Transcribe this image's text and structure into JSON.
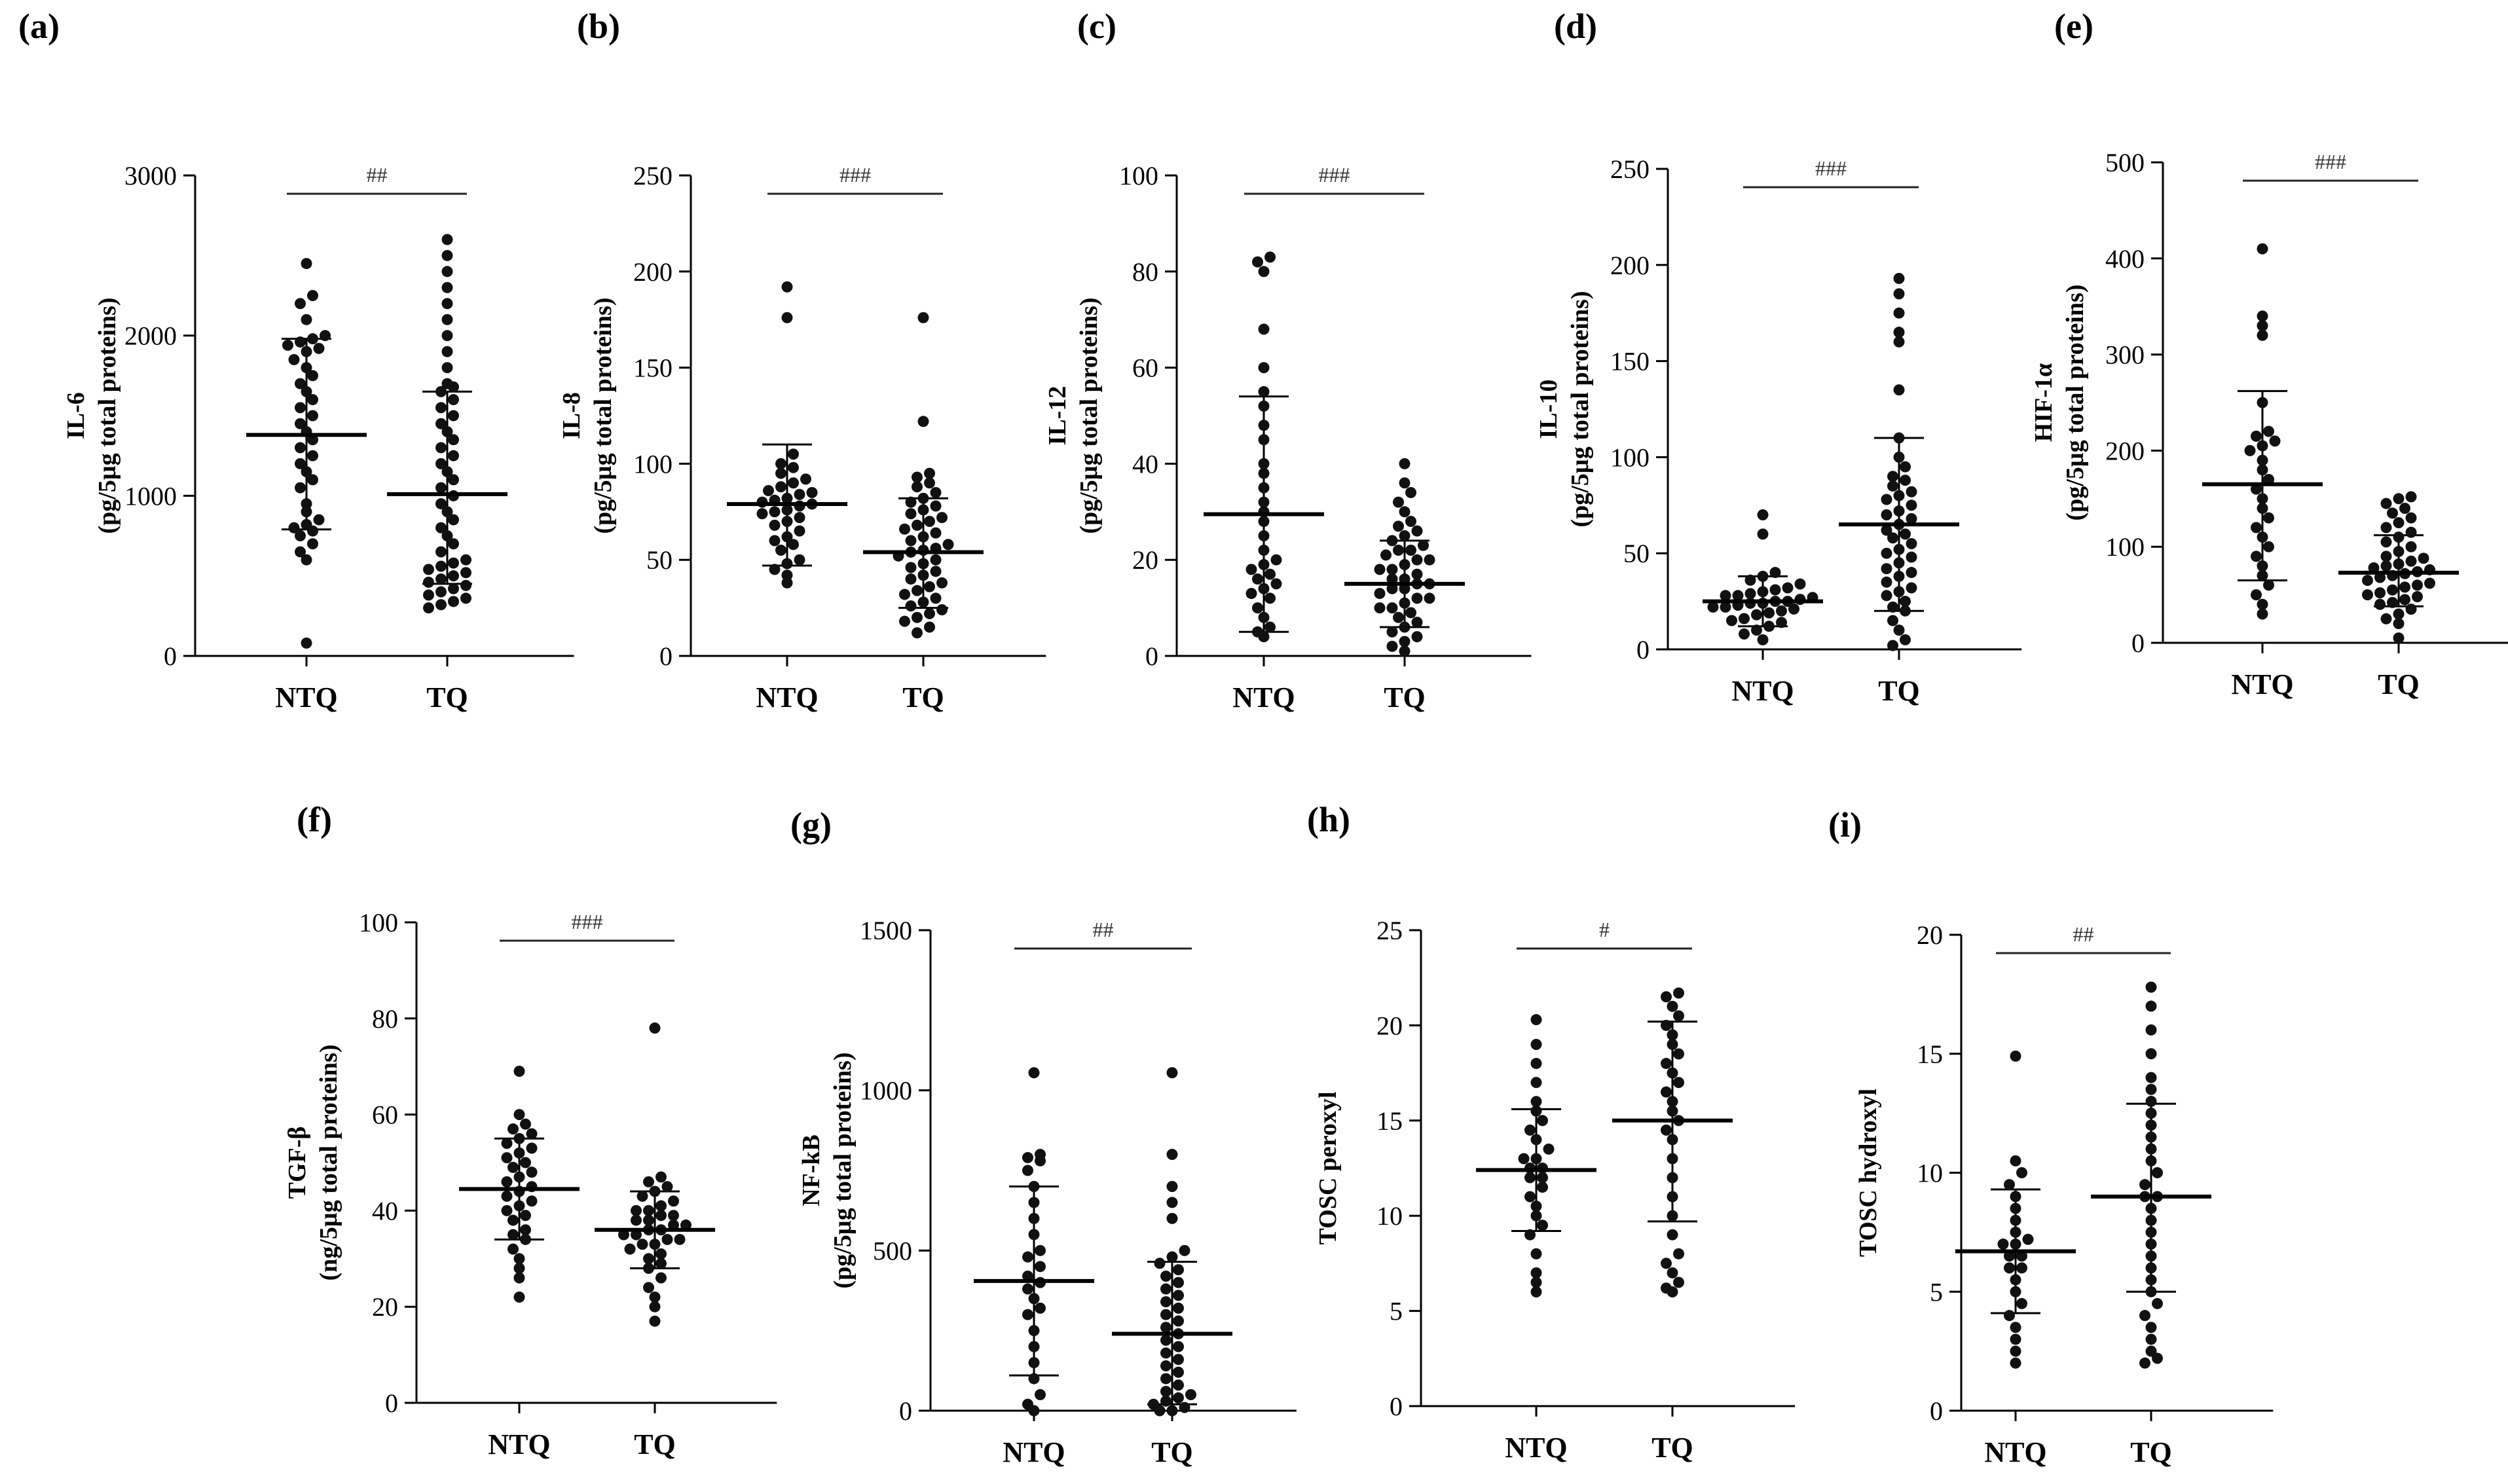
{
  "figure": {
    "categories": [
      "NTQ",
      "TQ"
    ],
    "colors": {
      "ink": "#000000",
      "dots": "#111111",
      "sig_line": "#222222"
    }
  },
  "chart_data": [
    {
      "label": "(a)",
      "type": "scatter",
      "title": "",
      "ylabel": [
        "IL-6",
        "(pg/5µg total proteins)"
      ],
      "ylim": [
        0,
        3000
      ],
      "yticks": [
        0,
        1000,
        2000,
        3000
      ],
      "categories": [
        "NTQ",
        "TQ"
      ],
      "significance": "##",
      "series": [
        {
          "name": "NTQ",
          "mean": 1380,
          "sd_low": 790,
          "sd_high": 1980,
          "values": [
            80,
            600,
            650,
            700,
            750,
            780,
            800,
            820,
            850,
            900,
            950,
            1050,
            1100,
            1150,
            1200,
            1250,
            1300,
            1350,
            1400,
            1450,
            1500,
            1550,
            1600,
            1650,
            1700,
            1750,
            1800,
            1850,
            1900,
            1920,
            1940,
            1960,
            1980,
            2000,
            2100,
            2200,
            2250,
            2450
          ]
        },
        {
          "name": "TQ",
          "mean": 1010,
          "sd_low": 450,
          "sd_high": 1650,
          "values": [
            300,
            320,
            340,
            360,
            380,
            400,
            420,
            440,
            460,
            480,
            500,
            520,
            540,
            560,
            580,
            600,
            650,
            700,
            750,
            800,
            850,
            900,
            950,
            1000,
            1050,
            1100,
            1150,
            1200,
            1250,
            1300,
            1350,
            1400,
            1450,
            1500,
            1550,
            1600,
            1650,
            1680,
            1700,
            1800,
            1900,
            2000,
            2100,
            2200,
            2300,
            2400,
            2500,
            2600
          ]
        }
      ]
    },
    {
      "label": "(b)",
      "type": "scatter",
      "title": "",
      "ylabel": [
        "IL-8",
        "(pg/5µg total proteins)"
      ],
      "ylim": [
        0,
        250
      ],
      "yticks": [
        0,
        50,
        100,
        150,
        200,
        250
      ],
      "categories": [
        "NTQ",
        "TQ"
      ],
      "significance": "###",
      "series": [
        {
          "name": "NTQ",
          "mean": 79,
          "sd_low": 47,
          "sd_high": 110,
          "values": [
            38,
            42,
            45,
            48,
            50,
            55,
            58,
            60,
            62,
            65,
            68,
            70,
            72,
            74,
            75,
            76,
            78,
            79,
            80,
            81,
            82,
            84,
            85,
            86,
            88,
            90,
            92,
            95,
            98,
            100,
            105,
            176,
            192
          ]
        },
        {
          "name": "TQ",
          "mean": 54,
          "sd_low": 25,
          "sd_high": 82,
          "values": [
            12,
            15,
            18,
            20,
            22,
            24,
            26,
            28,
            30,
            32,
            34,
            36,
            38,
            40,
            42,
            44,
            46,
            48,
            50,
            52,
            54,
            55,
            56,
            58,
            60,
            62,
            64,
            66,
            68,
            70,
            72,
            74,
            76,
            78,
            80,
            82,
            85,
            88,
            90,
            93,
            95,
            122,
            176
          ]
        }
      ]
    },
    {
      "label": "(c)",
      "type": "scatter",
      "title": "",
      "ylabel": [
        "IL-12",
        "(pg/5µg total proteins)"
      ],
      "ylim": [
        0,
        100
      ],
      "yticks": [
        0,
        20,
        40,
        60,
        80,
        100
      ],
      "categories": [
        "NTQ",
        "TQ"
      ],
      "significance": "###",
      "series": [
        {
          "name": "NTQ",
          "mean": 29.5,
          "sd_low": 5,
          "sd_high": 54,
          "values": [
            4,
            5,
            6,
            8,
            10,
            12,
            13,
            14,
            15,
            16,
            17,
            18,
            19,
            20,
            22,
            25,
            28,
            30,
            32,
            35,
            38,
            40,
            45,
            48,
            52,
            55,
            60,
            68,
            80,
            82,
            83
          ]
        },
        {
          "name": "TQ",
          "mean": 15,
          "sd_low": 6,
          "sd_high": 24,
          "values": [
            1,
            2,
            3,
            4,
            5,
            6,
            7,
            8,
            9,
            10,
            10,
            11,
            12,
            12,
            13,
            14,
            14,
            15,
            15,
            16,
            16,
            17,
            18,
            18,
            19,
            20,
            20,
            21,
            22,
            22,
            23,
            24,
            25,
            26,
            27,
            28,
            30,
            32,
            34,
            36,
            40
          ]
        }
      ]
    },
    {
      "label": "(d)",
      "type": "scatter",
      "title": "",
      "ylabel": [
        "IL-10",
        "(pg/5µg total proteins)"
      ],
      "ylim": [
        0,
        250
      ],
      "yticks": [
        0,
        50,
        100,
        150,
        200,
        250
      ],
      "categories": [
        "NTQ",
        "TQ"
      ],
      "significance": "###",
      "series": [
        {
          "name": "NTQ",
          "mean": 25,
          "sd_low": 12,
          "sd_high": 38,
          "values": [
            5,
            8,
            10,
            12,
            14,
            15,
            16,
            18,
            19,
            20,
            21,
            22,
            22,
            23,
            24,
            24,
            25,
            25,
            26,
            27,
            28,
            28,
            29,
            30,
            31,
            32,
            34,
            36,
            38,
            40,
            60,
            70
          ]
        },
        {
          "name": "TQ",
          "mean": 65,
          "sd_low": 20,
          "sd_high": 110,
          "values": [
            2,
            5,
            10,
            15,
            20,
            22,
            25,
            28,
            30,
            32,
            35,
            38,
            40,
            42,
            45,
            48,
            50,
            52,
            55,
            58,
            60,
            62,
            65,
            68,
            70,
            72,
            75,
            78,
            80,
            82,
            85,
            88,
            90,
            95,
            100,
            110,
            135,
            160,
            165,
            175,
            185,
            193
          ]
        }
      ]
    },
    {
      "label": "(e)",
      "type": "scatter",
      "title": "",
      "ylabel": [
        "HIF-1α",
        "(pg/5µg total proteins)"
      ],
      "ylim": [
        0,
        500
      ],
      "yticks": [
        0,
        100,
        200,
        300,
        400,
        500
      ],
      "categories": [
        "NTQ",
        "TQ"
      ],
      "significance": "###",
      "series": [
        {
          "name": "NTQ",
          "mean": 165,
          "sd_low": 65,
          "sd_high": 262,
          "values": [
            30,
            40,
            50,
            60,
            70,
            80,
            90,
            100,
            110,
            120,
            130,
            140,
            150,
            160,
            170,
            180,
            190,
            200,
            205,
            210,
            215,
            220,
            250,
            320,
            330,
            340,
            410
          ]
        },
        {
          "name": "TQ",
          "mean": 73,
          "sd_low": 38,
          "sd_high": 112,
          "values": [
            5,
            20,
            25,
            30,
            35,
            40,
            42,
            45,
            48,
            50,
            52,
            55,
            58,
            60,
            62,
            65,
            68,
            70,
            72,
            74,
            76,
            78,
            80,
            82,
            85,
            88,
            90,
            95,
            100,
            105,
            110,
            115,
            120,
            125,
            130,
            135,
            140,
            145,
            150,
            152
          ]
        }
      ]
    },
    {
      "label": "(f)",
      "type": "scatter",
      "title": "",
      "ylabel": [
        "TGF-β",
        "(ng/5µg total proteins)"
      ],
      "ylim": [
        0,
        100
      ],
      "yticks": [
        0,
        20,
        40,
        60,
        80,
        100
      ],
      "categories": [
        "NTQ",
        "TQ"
      ],
      "significance": "###",
      "series": [
        {
          "name": "NTQ",
          "mean": 44.5,
          "sd_low": 34,
          "sd_high": 55,
          "values": [
            22,
            26,
            28,
            30,
            32,
            34,
            35,
            36,
            38,
            39,
            40,
            41,
            42,
            43,
            44,
            45,
            46,
            47,
            48,
            49,
            50,
            51,
            52,
            53,
            54,
            55,
            56,
            57,
            58,
            60,
            69
          ]
        },
        {
          "name": "TQ",
          "mean": 36,
          "sd_low": 28,
          "sd_high": 44,
          "values": [
            17,
            20,
            22,
            24,
            26,
            28,
            29,
            30,
            31,
            32,
            33,
            33,
            34,
            34,
            35,
            35,
            36,
            36,
            37,
            37,
            38,
            38,
            39,
            39,
            40,
            40,
            41,
            42,
            43,
            44,
            45,
            46,
            47,
            78
          ]
        }
      ]
    },
    {
      "label": "(g)",
      "type": "scatter",
      "title": "",
      "ylabel": [
        "NF-kB",
        "(pg/5µg total proteins)"
      ],
      "ylim": [
        0,
        1500
      ],
      "yticks": [
        0,
        500,
        1000,
        1500
      ],
      "categories": [
        "NTQ",
        "TQ"
      ],
      "significance": "##",
      "series": [
        {
          "name": "NTQ",
          "mean": 405,
          "sd_low": 110,
          "sd_high": 700,
          "values": [
            0,
            20,
            50,
            100,
            150,
            200,
            250,
            300,
            320,
            350,
            380,
            400,
            420,
            450,
            480,
            500,
            550,
            600,
            650,
            700,
            750,
            780,
            790,
            800,
            1055
          ]
        },
        {
          "name": "TQ",
          "mean": 240,
          "sd_low": 20,
          "sd_high": 465,
          "values": [
            0,
            0,
            10,
            20,
            30,
            40,
            50,
            60,
            80,
            100,
            120,
            140,
            160,
            180,
            200,
            220,
            240,
            260,
            280,
            300,
            320,
            340,
            360,
            380,
            400,
            420,
            440,
            460,
            480,
            500,
            600,
            650,
            700,
            800,
            1055
          ]
        }
      ]
    },
    {
      "label": "(h)",
      "type": "scatter",
      "title": "",
      "ylabel": [
        "TOSC peroxyl"
      ],
      "ylim": [
        0,
        25
      ],
      "yticks": [
        0,
        5,
        10,
        15,
        20,
        25
      ],
      "categories": [
        "NTQ",
        "TQ"
      ],
      "significance": "#",
      "series": [
        {
          "name": "NTQ",
          "mean": 12.4,
          "sd_low": 9.2,
          "sd_high": 15.6,
          "values": [
            6,
            6.5,
            7,
            8,
            9,
            9.5,
            10,
            10.5,
            11,
            11.5,
            12,
            12,
            12.5,
            12.5,
            13,
            13,
            13.5,
            14,
            14.5,
            15,
            15.5,
            16,
            17,
            18,
            19,
            20.3
          ]
        },
        {
          "name": "TQ",
          "mean": 15,
          "sd_low": 9.7,
          "sd_high": 20.2,
          "values": [
            6,
            6.2,
            6.5,
            7,
            7.5,
            8,
            9,
            10,
            11,
            12,
            13,
            14,
            14.5,
            15,
            15.5,
            16,
            16.5,
            17,
            17.5,
            18,
            18.5,
            19,
            19.5,
            20,
            20.5,
            21,
            21.5,
            21.7
          ]
        }
      ]
    },
    {
      "label": "(i)",
      "type": "scatter",
      "title": "",
      "ylabel": [
        "TOSC hydroxyl"
      ],
      "ylim": [
        0,
        20
      ],
      "yticks": [
        0,
        5,
        10,
        15,
        20
      ],
      "categories": [
        "NTQ",
        "TQ"
      ],
      "significance": "##",
      "series": [
        {
          "name": "NTQ",
          "mean": 6.7,
          "sd_low": 4.1,
          "sd_high": 9.3,
          "values": [
            2,
            2.5,
            3,
            3.5,
            4,
            4.5,
            5,
            5.5,
            6,
            6,
            6.5,
            6.5,
            7,
            7,
            7.2,
            7.5,
            8,
            8.5,
            9,
            9.5,
            10,
            10.5,
            14.9
          ]
        },
        {
          "name": "TQ",
          "mean": 9,
          "sd_low": 5,
          "sd_high": 12.9,
          "values": [
            2,
            2.2,
            2.5,
            3,
            3.5,
            4,
            4.5,
            5,
            5.5,
            6,
            6.5,
            7,
            7.5,
            8,
            8.5,
            9,
            9,
            9.5,
            10,
            10.5,
            11,
            11.5,
            12,
            12.5,
            13,
            13.5,
            14,
            15,
            16,
            17,
            17.8
          ]
        }
      ]
    }
  ]
}
